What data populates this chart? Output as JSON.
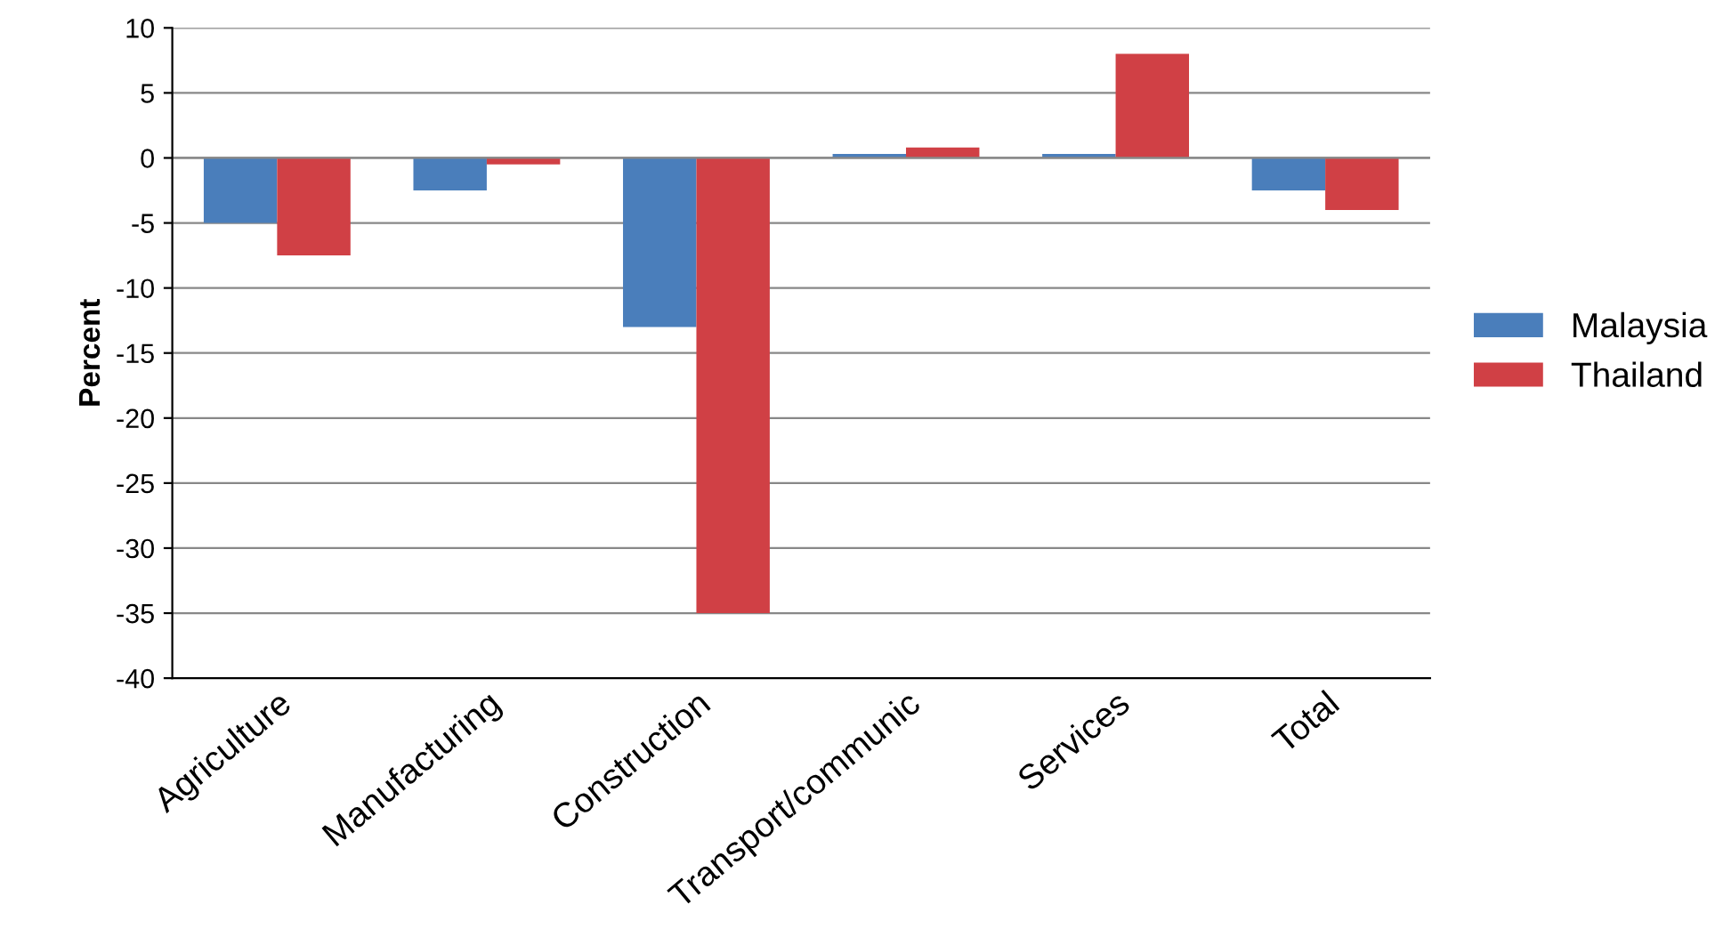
{
  "chart_data": {
    "type": "bar",
    "ylabel": "Percent",
    "categories": [
      "Agriculture",
      "Manufacturing",
      "Construction",
      "Transport/communic",
      "Services",
      "Total"
    ],
    "series": [
      {
        "name": "Malaysia",
        "color": "#4a7ebb",
        "values": [
          -5,
          -2.5,
          -13,
          0.3,
          0.3,
          -2.5
        ]
      },
      {
        "name": "Thailand",
        "color": "#d04045",
        "values": [
          -7.5,
          -0.5,
          -35,
          0.8,
          8,
          -4
        ]
      }
    ],
    "ylim": [
      -40,
      10
    ],
    "yticks": [
      -40,
      -35,
      -30,
      -25,
      -20,
      -15,
      -10,
      -5,
      0,
      5,
      10
    ],
    "grid": "y",
    "legend": "right"
  }
}
